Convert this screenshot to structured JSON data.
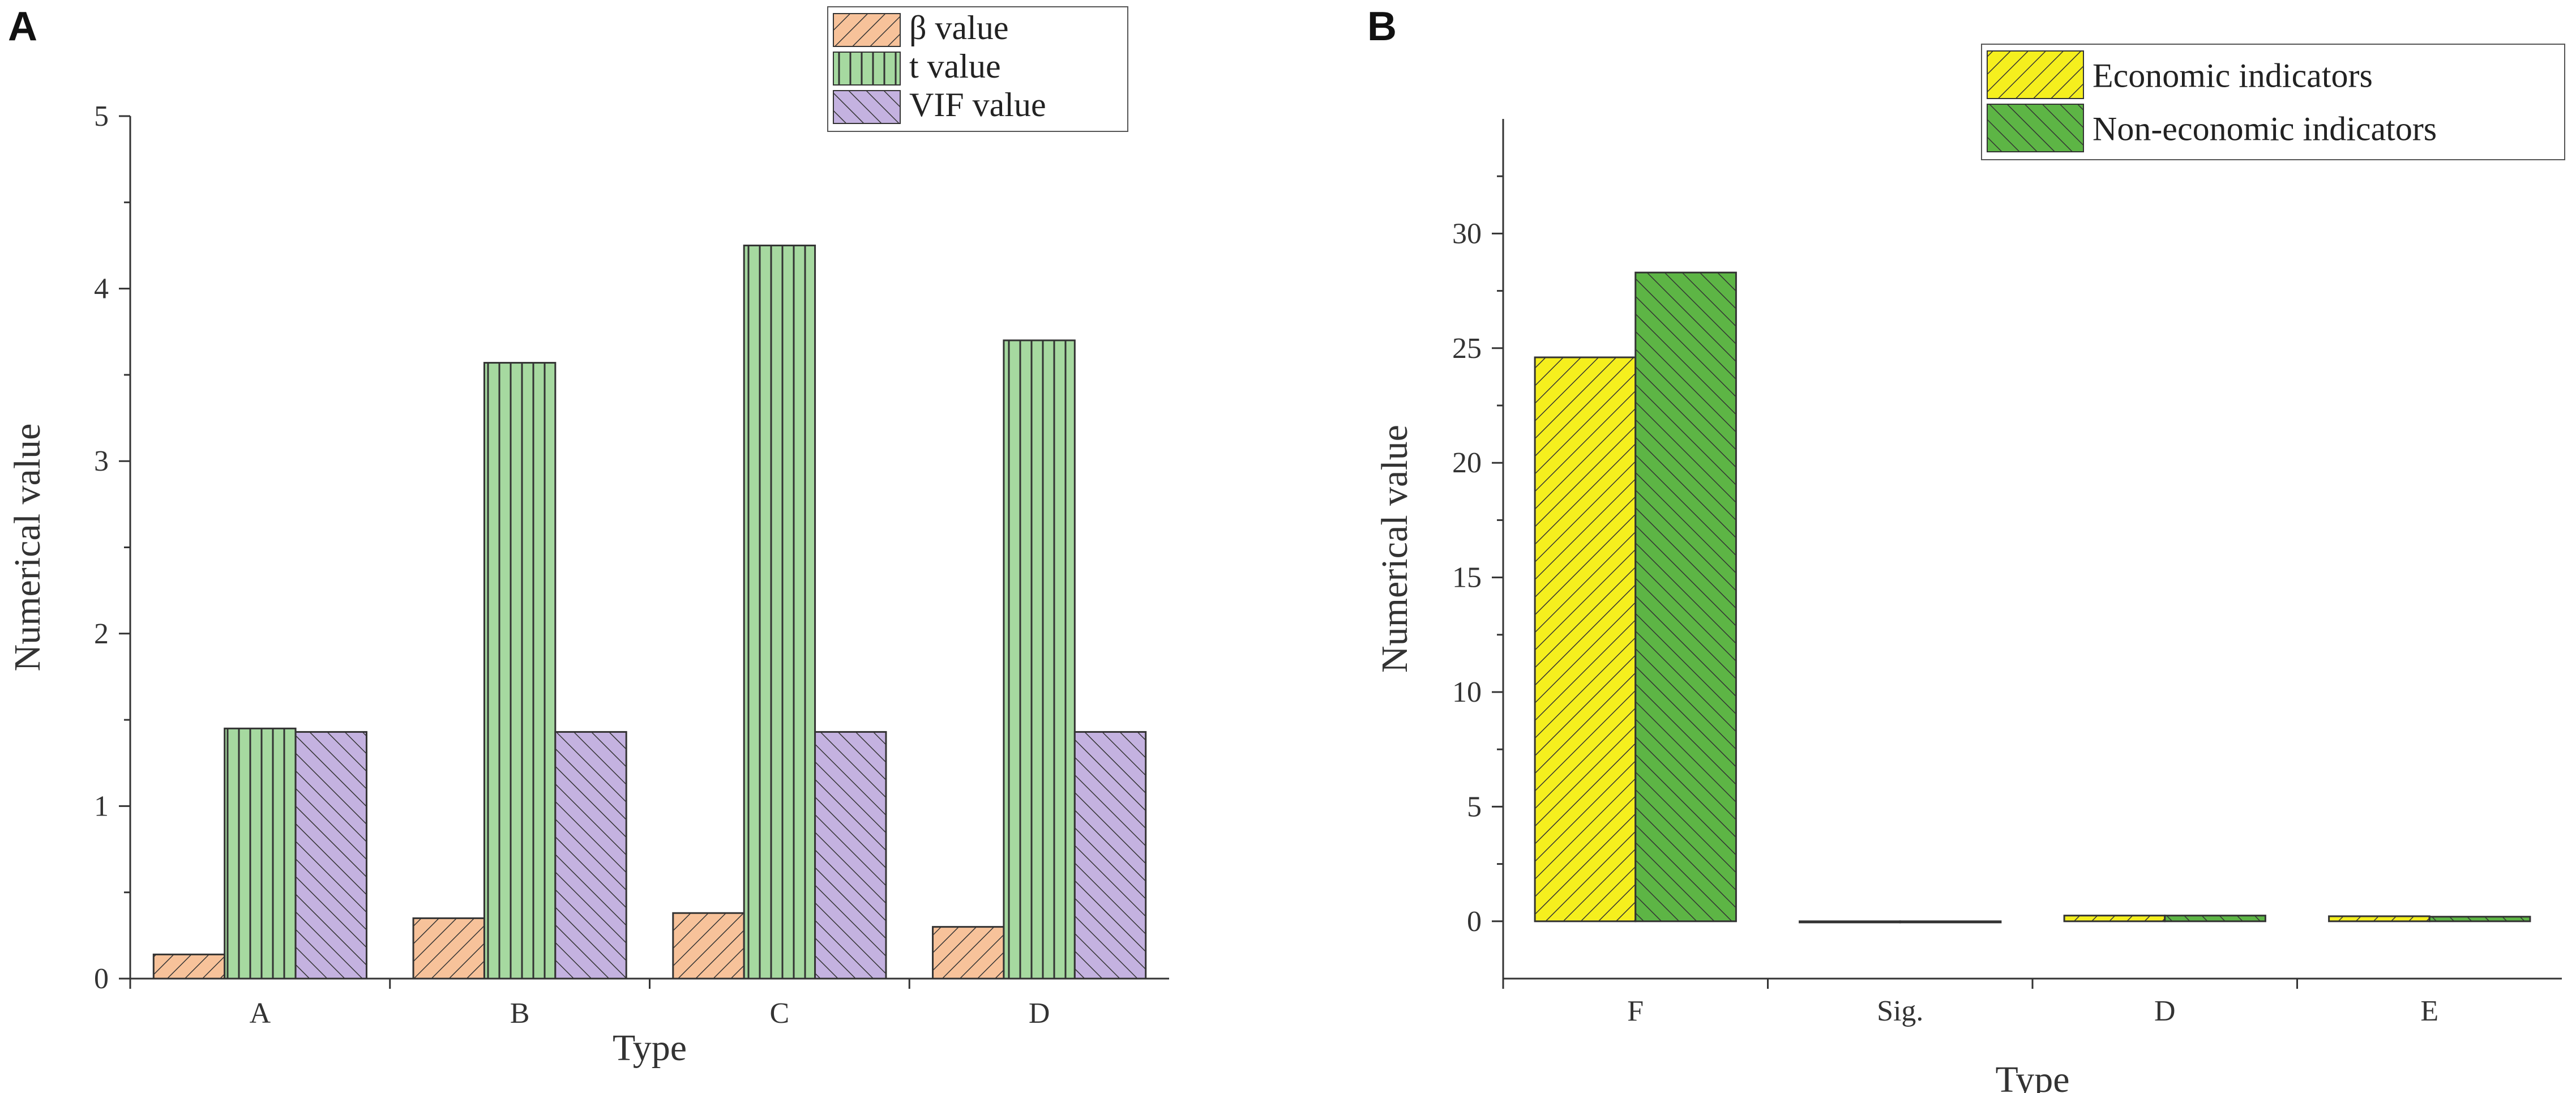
{
  "panels": {
    "a_label": "A",
    "b_label": "B"
  },
  "chart_data": [
    {
      "type": "bar",
      "panel": "A",
      "categories": [
        "A",
        "B",
        "C",
        "D"
      ],
      "series": [
        {
          "name": "β value",
          "values": [
            0.14,
            0.35,
            0.38,
            0.3
          ],
          "color": "#f7c29a",
          "hatch": "diag-right"
        },
        {
          "name": "t value",
          "values": [
            1.45,
            3.57,
            4.25,
            3.7
          ],
          "color": "#a6d9a0",
          "hatch": "vertical"
        },
        {
          "name": "VIF value",
          "values": [
            1.43,
            1.43,
            1.43,
            1.43
          ],
          "color": "#c4b2e0",
          "hatch": "diag-left"
        }
      ],
      "xlabel": "Type",
      "ylabel": "Numerical value",
      "ylim": [
        0,
        5
      ],
      "yticks": [
        0,
        1,
        2,
        3,
        4,
        5
      ],
      "legend": "top-right",
      "grid": false
    },
    {
      "type": "bar",
      "panel": "B",
      "categories": [
        "F",
        "Sig.",
        "D",
        "E"
      ],
      "series": [
        {
          "name": "Economic indicators",
          "values": [
            24.6,
            -0.05,
            0.25,
            0.22
          ],
          "color": "#f5ef1e",
          "hatch": "diag-right"
        },
        {
          "name": "Non-economic indicators",
          "values": [
            28.3,
            -0.05,
            0.25,
            0.2
          ],
          "color": "#5db545",
          "hatch": "diag-left"
        }
      ],
      "xlabel": "Type",
      "ylabel": "Numerical value",
      "ylim": [
        -2.5,
        35
      ],
      "yticks": [
        0,
        5,
        10,
        15,
        20,
        25,
        30
      ],
      "legend": "top-right",
      "grid": false
    }
  ]
}
